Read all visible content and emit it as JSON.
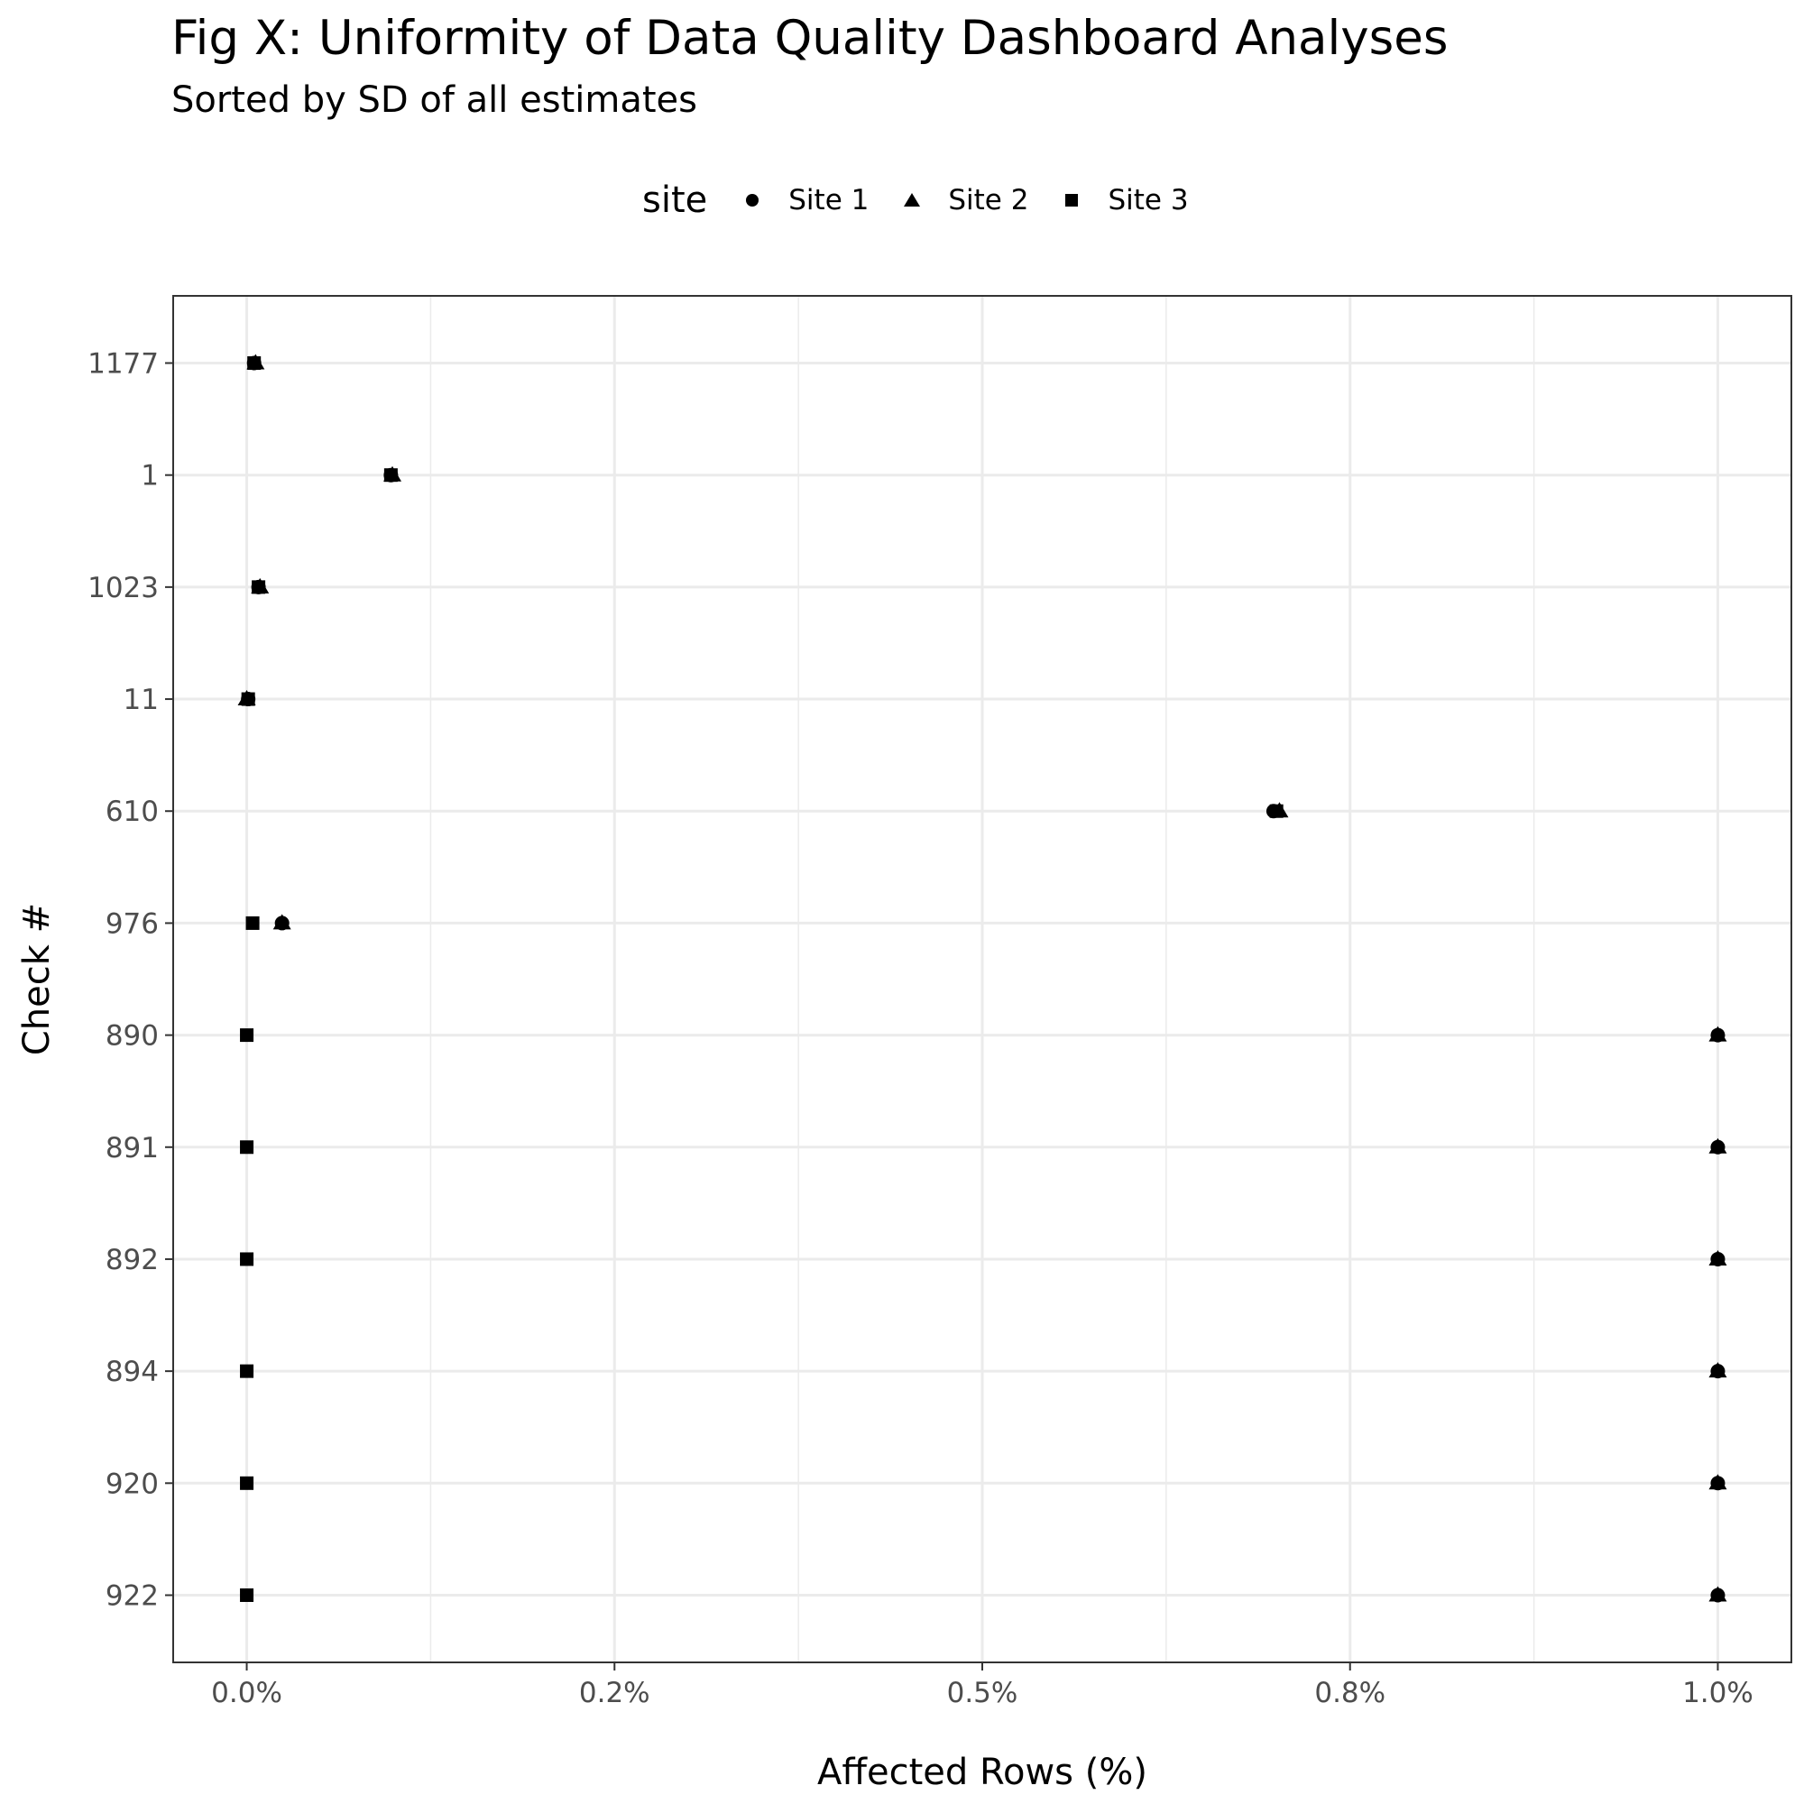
{
  "chart_data": {
    "type": "scatter",
    "title": "Fig X: Uniformity of Data Quality Dashboard Analyses",
    "subtitle": "Sorted by SD of all estimates",
    "xlabel": "Affected Rows (%)",
    "ylabel": "Check #",
    "xlim": [
      -0.05,
      1.05
    ],
    "x_major_ticks": [
      0.0,
      0.25,
      0.5,
      0.75,
      1.0
    ],
    "x_tick_labels": [
      "0.0%",
      "0.2%",
      "0.5%",
      "0.8%",
      "1.0%"
    ],
    "x_minor_ticks": [
      0.125,
      0.375,
      0.625,
      0.875
    ],
    "categories": [
      "1177",
      "1",
      "1023",
      "11",
      "610",
      "976",
      "890",
      "891",
      "892",
      "894",
      "920",
      "922"
    ],
    "grid": true,
    "legend": {
      "title": "site",
      "position": "top",
      "entries": [
        {
          "label": "Site 1",
          "shape": "circle"
        },
        {
          "label": "Site 2",
          "shape": "triangle"
        },
        {
          "label": "Site 3",
          "shape": "square"
        }
      ]
    },
    "series": [
      {
        "name": "Site 1",
        "shape": "circle",
        "values": [
          0.005,
          0.098,
          0.008,
          0.001,
          0.698,
          0.024,
          1.0,
          1.0,
          1.0,
          1.0,
          1.0,
          1.0
        ]
      },
      {
        "name": "Site 2",
        "shape": "triangle",
        "values": [
          0.006,
          0.099,
          0.009,
          0.0,
          0.702,
          0.024,
          1.0,
          1.0,
          1.0,
          1.0,
          1.0,
          1.0
        ]
      },
      {
        "name": "Site 3",
        "shape": "square",
        "values": [
          0.005,
          0.098,
          0.008,
          0.001,
          0.7,
          0.004,
          0.0,
          0.0,
          0.0,
          0.0,
          0.0,
          0.0
        ]
      }
    ]
  }
}
